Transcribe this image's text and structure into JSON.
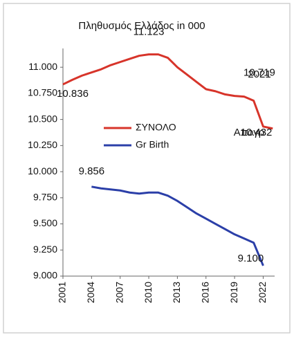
{
  "chart_data": {
    "type": "line",
    "title": "Πληθυσμός Ελλάδος in 000",
    "x": [
      2001,
      2002,
      2003,
      2004,
      2005,
      2006,
      2007,
      2008,
      2009,
      2010,
      2011,
      2012,
      2013,
      2014,
      2015,
      2016,
      2017,
      2018,
      2019,
      2020,
      2021,
      2022,
      2023
    ],
    "series": [
      {
        "name": "ΣΥΝΟΛΟ",
        "color": "#d7342a",
        "values": [
          10836,
          10880,
          10920,
          10950,
          10980,
          11020,
          11050,
          11080,
          11110,
          11123,
          11123,
          11090,
          11000,
          10930,
          10860,
          10790,
          10770,
          10740,
          10725,
          10719,
          10680,
          10432,
          10413
        ],
        "value_labels": [
          "10.836",
          null,
          null,
          null,
          null,
          null,
          null,
          null,
          null,
          "11.123",
          null,
          null,
          null,
          null,
          null,
          null,
          null,
          null,
          null,
          "10.719",
          null,
          "10.432",
          null
        ]
      },
      {
        "name": "Gr Birth",
        "color": "#2b3fa8",
        "values": [
          null,
          null,
          null,
          9856,
          9840,
          9830,
          9820,
          9800,
          9790,
          9800,
          9800,
          9770,
          9720,
          9660,
          9600,
          9550,
          9500,
          9450,
          9400,
          9360,
          9320,
          9100,
          null
        ],
        "value_labels": [
          null,
          null,
          null,
          "9.856",
          null,
          null,
          null,
          null,
          null,
          null,
          null,
          null,
          null,
          null,
          null,
          null,
          null,
          null,
          null,
          null,
          null,
          "9.100",
          null
        ]
      }
    ],
    "annotations": [
      "2021",
      "Απογρ"
    ],
    "xlim": [
      2001,
      2023.2
    ],
    "xticks": [
      2001,
      2004,
      2007,
      2010,
      2013,
      2016,
      2019,
      2022
    ],
    "ylim": [
      9000,
      11180
    ],
    "yticks": [
      {
        "value": 9000,
        "label": "9.000"
      },
      {
        "value": 9250,
        "label": "9.250"
      },
      {
        "value": 9500,
        "label": "9.500"
      },
      {
        "value": 9750,
        "label": "9.750"
      },
      {
        "value": 10000,
        "label": "10.000"
      },
      {
        "value": 10250,
        "label": "10.250"
      },
      {
        "value": 10500,
        "label": "10.500"
      },
      {
        "value": 10750,
        "label": "10.750"
      },
      {
        "value": 11000,
        "label": "11.000"
      }
    ],
    "grid": false
  }
}
